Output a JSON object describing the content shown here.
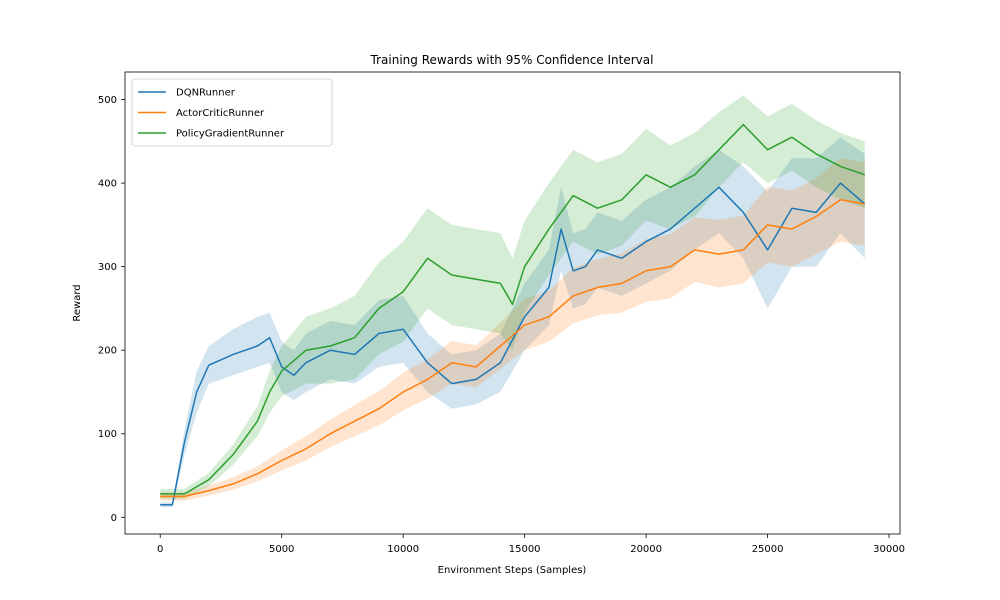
{
  "chart_data": {
    "type": "line",
    "title": "Training Rewards with 95% Confidence Interval",
    "xlabel": "Environment Steps (Samples)",
    "ylabel": "Reward",
    "xlim": [
      -1450,
      30450
    ],
    "ylim": [
      -20,
      533
    ],
    "xticks": [
      0,
      5000,
      10000,
      15000,
      20000,
      25000,
      30000
    ],
    "yticks": [
      0,
      100,
      200,
      300,
      400,
      500
    ],
    "legend_position": "upper-left",
    "grid": false,
    "confidence_interval": "95%",
    "series": [
      {
        "name": "DQNRunner",
        "color": "#1f77b4",
        "x": [
          0,
          500,
          1000,
          1500,
          2000,
          3000,
          4000,
          4500,
          5000,
          5500,
          6000,
          7000,
          8000,
          9000,
          10000,
          11000,
          12000,
          13000,
          14000,
          15000,
          16000,
          16500,
          17000,
          17500,
          18000,
          19000,
          20000,
          21000,
          22000,
          23000,
          24000,
          25000,
          26000,
          27000,
          28000,
          29000
        ],
        "y": [
          15,
          15,
          90,
          150,
          182,
          195,
          205,
          215,
          180,
          170,
          185,
          200,
          195,
          220,
          225,
          185,
          160,
          165,
          185,
          240,
          275,
          345,
          295,
          300,
          320,
          310,
          330,
          345,
          370,
          395,
          365,
          320,
          370,
          365,
          400,
          375
        ],
        "lower": [
          12,
          12,
          75,
          125,
          160,
          170,
          180,
          185,
          150,
          140,
          150,
          165,
          160,
          180,
          185,
          150,
          130,
          135,
          150,
          200,
          230,
          295,
          250,
          255,
          275,
          265,
          280,
          295,
          320,
          340,
          310,
          250,
          300,
          300,
          340,
          310
        ],
        "upper": [
          18,
          18,
          105,
          175,
          205,
          225,
          240,
          245,
          210,
          200,
          220,
          235,
          230,
          260,
          265,
          220,
          195,
          200,
          220,
          280,
          320,
          395,
          340,
          345,
          365,
          355,
          380,
          395,
          420,
          440,
          420,
          390,
          430,
          430,
          455,
          435
        ]
      },
      {
        "name": "ActorCriticRunner",
        "color": "#ff7f0e",
        "x": [
          0,
          1000,
          2000,
          3000,
          4000,
          5000,
          6000,
          7000,
          8000,
          9000,
          10000,
          11000,
          12000,
          13000,
          14000,
          15000,
          16000,
          17000,
          18000,
          19000,
          20000,
          21000,
          22000,
          23000,
          24000,
          25000,
          26000,
          27000,
          28000,
          29000
        ],
        "y": [
          25,
          25,
          32,
          40,
          52,
          68,
          82,
          100,
          115,
          130,
          150,
          165,
          185,
          180,
          205,
          230,
          240,
          265,
          275,
          280,
          295,
          300,
          320,
          315,
          320,
          350,
          345,
          360,
          380,
          375
        ],
        "lower": [
          20,
          20,
          26,
          33,
          43,
          56,
          68,
          84,
          97,
          110,
          128,
          142,
          160,
          155,
          178,
          200,
          210,
          232,
          242,
          245,
          258,
          262,
          282,
          275,
          280,
          305,
          300,
          315,
          330,
          325
        ],
        "upper": [
          30,
          30,
          38,
          48,
          61,
          80,
          97,
          117,
          134,
          151,
          173,
          189,
          211,
          206,
          233,
          261,
          271,
          299,
          309,
          316,
          333,
          339,
          359,
          356,
          361,
          396,
          391,
          406,
          430,
          425
        ]
      },
      {
        "name": "PolicyGradientRunner",
        "color": "#2ca02c",
        "x": [
          0,
          1000,
          2000,
          3000,
          3500,
          4000,
          4500,
          5000,
          6000,
          7000,
          8000,
          9000,
          10000,
          11000,
          12000,
          13000,
          14000,
          14500,
          15000,
          16000,
          17000,
          18000,
          19000,
          20000,
          21000,
          22000,
          23000,
          24000,
          25000,
          26000,
          27000,
          28000,
          28500,
          29000
        ],
        "y": [
          28,
          28,
          45,
          75,
          95,
          115,
          150,
          175,
          200,
          205,
          215,
          250,
          270,
          310,
          290,
          285,
          280,
          255,
          300,
          345,
          385,
          370,
          380,
          410,
          395,
          410,
          440,
          470,
          440,
          455,
          435,
          420,
          415,
          410
        ],
        "lower": [
          22,
          22,
          37,
          63,
          80,
          97,
          125,
          145,
          160,
          160,
          165,
          195,
          210,
          250,
          230,
          225,
          220,
          200,
          245,
          290,
          330,
          315,
          325,
          355,
          345,
          360,
          395,
          425,
          400,
          415,
          395,
          380,
          375,
          370
        ],
        "upper": [
          34,
          34,
          53,
          87,
          110,
          133,
          175,
          205,
          240,
          250,
          265,
          305,
          330,
          370,
          350,
          345,
          340,
          310,
          355,
          400,
          440,
          425,
          435,
          465,
          445,
          460,
          485,
          505,
          480,
          495,
          475,
          460,
          455,
          450
        ]
      }
    ]
  }
}
